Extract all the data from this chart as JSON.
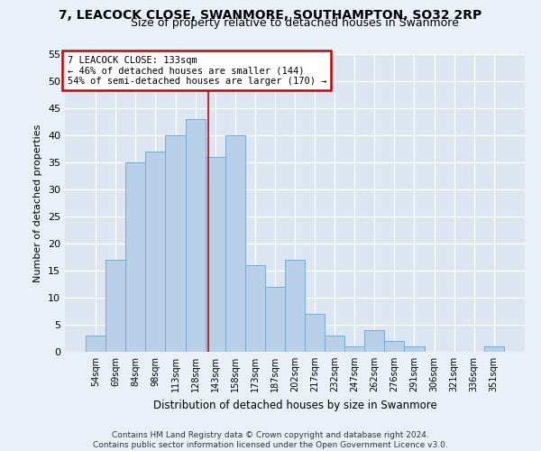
{
  "title": "7, LEACOCK CLOSE, SWANMORE, SOUTHAMPTON, SO32 2RP",
  "subtitle": "Size of property relative to detached houses in Swanmore",
  "xlabel": "Distribution of detached houses by size in Swanmore",
  "ylabel": "Number of detached properties",
  "categories": [
    "54sqm",
    "69sqm",
    "84sqm",
    "98sqm",
    "113sqm",
    "128sqm",
    "143sqm",
    "158sqm",
    "173sqm",
    "187sqm",
    "202sqm",
    "217sqm",
    "232sqm",
    "247sqm",
    "262sqm",
    "276sqm",
    "291sqm",
    "306sqm",
    "321sqm",
    "336sqm",
    "351sqm"
  ],
  "values": [
    3,
    17,
    35,
    37,
    40,
    43,
    36,
    40,
    16,
    12,
    17,
    7,
    3,
    1,
    4,
    2,
    1,
    0,
    0,
    0,
    1
  ],
  "bar_color": "#b8d0e8",
  "bar_edge_color": "#7aaad0",
  "vline_x": 5.67,
  "vline_color": "#cc0000",
  "annotation_text": "7 LEACOCK CLOSE: 133sqm\n← 46% of detached houses are smaller (144)\n54% of semi-detached houses are larger (170) →",
  "annotation_box_color": "#ffffff",
  "annotation_box_edge_color": "#cc0000",
  "ylim": [
    0,
    55
  ],
  "yticks": [
    0,
    5,
    10,
    15,
    20,
    25,
    30,
    35,
    40,
    45,
    50,
    55
  ],
  "bg_color": "#dce6f0",
  "grid_color": "#ffffff",
  "fig_bg_color": "#eaf0f7",
  "footer": "Contains HM Land Registry data © Crown copyright and database right 2024.\nContains public sector information licensed under the Open Government Licence v3.0.",
  "title_fontsize": 10,
  "subtitle_fontsize": 9,
  "footer_fontsize": 6.5
}
